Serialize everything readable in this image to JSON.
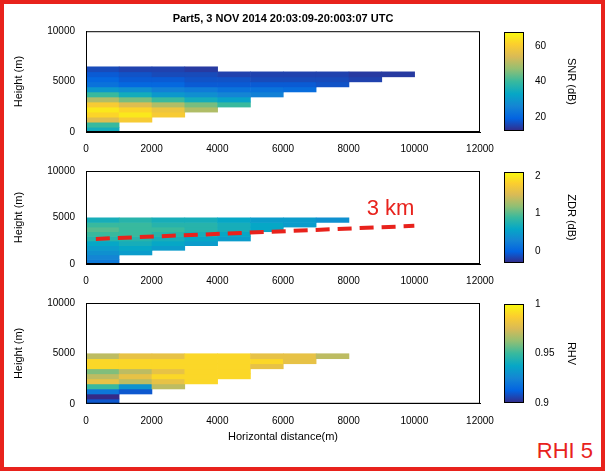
{
  "chart_data": [
    {
      "type": "heatmap",
      "title": "Part5, 3 NOV 2014 20:03:09-20:003:07 UTC",
      "ylabel": "Height (m)",
      "xlim": [
        0,
        12000
      ],
      "xticks": [
        0,
        2000,
        4000,
        6000,
        8000,
        10000,
        12000
      ],
      "ylim": [
        0,
        10000
      ],
      "yticks": [
        0,
        5000,
        10000
      ],
      "grid": false,
      "x_bins": [
        0,
        1000,
        2000,
        3000,
        4000,
        5000,
        6000,
        7000,
        8000,
        9000,
        10000
      ],
      "y_bins": [
        0,
        500,
        1000,
        1500,
        2000,
        2500,
        3000,
        3500,
        4000,
        4500,
        5000,
        5500,
        6000,
        6500
      ],
      "z": [
        [
          35,
          null,
          null,
          null,
          null,
          null,
          null,
          null,
          null,
          null
        ],
        [
          40,
          null,
          null,
          null,
          null,
          null,
          null,
          null,
          null,
          null
        ],
        [
          55,
          60,
          null,
          null,
          null,
          null,
          null,
          null,
          null,
          null
        ],
        [
          62,
          65,
          60,
          null,
          null,
          null,
          null,
          null,
          null,
          null
        ],
        [
          65,
          62,
          58,
          50,
          null,
          null,
          null,
          null,
          null,
          null
        ],
        [
          60,
          55,
          50,
          45,
          40,
          null,
          null,
          null,
          null,
          null
        ],
        [
          50,
          45,
          40,
          35,
          32,
          null,
          null,
          null,
          null,
          null
        ],
        [
          40,
          35,
          30,
          28,
          26,
          25,
          null,
          null,
          null,
          null
        ],
        [
          30,
          28,
          25,
          24,
          22,
          22,
          21,
          null,
          null,
          null
        ],
        [
          22,
          20,
          20,
          18,
          18,
          18,
          18,
          17,
          null,
          null
        ],
        [
          20,
          18,
          18,
          17,
          17,
          16,
          16,
          16,
          15,
          null
        ],
        [
          18,
          17,
          16,
          16,
          15,
          15,
          15,
          15,
          14,
          14
        ],
        [
          16,
          15,
          15,
          14,
          null,
          null,
          null,
          null,
          null,
          null
        ]
      ],
      "colorbar": {
        "label": "SNR (dB)",
        "range": [
          12,
          68
        ],
        "ticks": [
          20,
          40,
          60
        ]
      }
    },
    {
      "type": "heatmap",
      "ylabel": "Height (m)",
      "xlim": [
        0,
        12000
      ],
      "xticks": [
        0,
        2000,
        4000,
        6000,
        8000,
        10000,
        12000
      ],
      "ylim": [
        0,
        10000
      ],
      "yticks": [
        0,
        5000,
        10000
      ],
      "grid": false,
      "x_bins": [
        0,
        1000,
        2000,
        3000,
        4000,
        5000,
        6000,
        7000,
        8000,
        9000,
        10000
      ],
      "y_bins": [
        0,
        500,
        1000,
        1500,
        2000,
        2500,
        3000,
        3500,
        4000,
        4500,
        5000
      ],
      "z": [
        [
          0.2,
          null,
          null,
          null,
          null,
          null,
          null,
          null,
          null,
          null
        ],
        [
          0.3,
          null,
          null,
          null,
          null,
          null,
          null,
          null,
          null,
          null
        ],
        [
          0.4,
          0.5,
          null,
          null,
          null,
          null,
          null,
          null,
          null,
          null
        ],
        [
          0.5,
          0.6,
          0.5,
          null,
          null,
          null,
          null,
          null,
          null,
          null
        ],
        [
          0.6,
          0.7,
          0.6,
          0.5,
          null,
          null,
          null,
          null,
          null,
          null
        ],
        [
          0.8,
          0.8,
          0.7,
          0.6,
          0.5,
          null,
          null,
          null,
          null,
          null
        ],
        [
          0.9,
          0.9,
          0.8,
          0.7,
          0.6,
          null,
          null,
          null,
          null,
          null
        ],
        [
          1,
          0.9,
          0.9,
          0.8,
          0.7,
          0.6,
          null,
          null,
          null,
          null
        ],
        [
          0.9,
          0.9,
          0.8,
          0.8,
          0.7,
          0.6,
          0.5,
          null,
          null,
          null
        ],
        [
          0.7,
          0.8,
          0.7,
          0.7,
          0.6,
          0.5,
          0.5,
          0.4,
          null,
          null
        ]
      ],
      "colorbar": {
        "label": "ZDR (dB)",
        "range": [
          -0.3,
          2.1
        ],
        "ticks": [
          0,
          1,
          2
        ]
      },
      "annotations": [
        {
          "text": "3 km",
          "color": "#e8221c",
          "line": {
            "x": [
              300,
              10000
            ],
            "y": [
              2700,
              4100
            ]
          },
          "line_style": "dashed"
        }
      ]
    },
    {
      "type": "heatmap",
      "xlabel": "Horizontal distance(m)",
      "ylabel": "Height (m)",
      "xlim": [
        0,
        12000
      ],
      "xticks": [
        0,
        2000,
        4000,
        6000,
        8000,
        10000,
        12000
      ],
      "ylim": [
        0,
        10000
      ],
      "yticks": [
        0,
        5000,
        10000
      ],
      "grid": false,
      "x_bins": [
        0,
        1000,
        2000,
        3000,
        4000,
        5000,
        6000,
        7000,
        8000,
        9000,
        10000
      ],
      "y_bins": [
        0,
        500,
        1000,
        1500,
        2000,
        2500,
        3000,
        3500,
        4000,
        4500,
        5000
      ],
      "z": [
        [
          0.91,
          null,
          null,
          null,
          null,
          null,
          null,
          null,
          null,
          null
        ],
        [
          0.9,
          null,
          null,
          null,
          null,
          null,
          null,
          null,
          null,
          null
        ],
        [
          0.92,
          0.91,
          null,
          null,
          null,
          null,
          null,
          null,
          null,
          null
        ],
        [
          0.95,
          0.93,
          0.97,
          null,
          null,
          null,
          null,
          null,
          null,
          null
        ],
        [
          0.98,
          0.97,
          0.98,
          0.99,
          null,
          null,
          null,
          null,
          null,
          null
        ],
        [
          0.97,
          0.98,
          0.99,
          0.99,
          0.99,
          null,
          null,
          null,
          null,
          null
        ],
        [
          0.96,
          0.97,
          0.98,
          0.99,
          0.99,
          null,
          null,
          null,
          null,
          null
        ],
        [
          0.99,
          0.99,
          0.99,
          0.99,
          0.99,
          0.98,
          null,
          null,
          null,
          null
        ],
        [
          0.99,
          0.99,
          0.99,
          0.99,
          0.99,
          0.99,
          0.98,
          null,
          null,
          null
        ],
        [
          0.97,
          0.98,
          0.98,
          0.99,
          0.99,
          0.98,
          0.98,
          0.97,
          null,
          null
        ]
      ],
      "colorbar": {
        "label": "RHV",
        "range": [
          0.9,
          1
        ],
        "ticks": [
          0.9,
          0.95,
          1
        ]
      },
      "annotations": [
        {
          "text": "RHI 5",
          "color": "#e8221c"
        }
      ]
    }
  ]
}
